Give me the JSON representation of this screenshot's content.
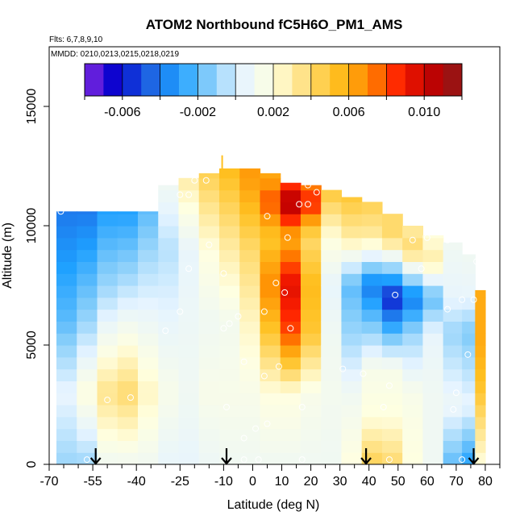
{
  "chart_data": {
    "type": "heatmap",
    "title": "ATOM2 Northbound fC5H6O_PM1_AMS",
    "flights_label": "Flts: 6,7,8,9,10",
    "dates_label": "MMDD: 0210,0213,0215,0218,0219",
    "xlabel": "Latitude (deg N)",
    "ylabel": "Altitude (m)",
    "xlim": [
      -70,
      85
    ],
    "ylim": [
      0,
      17500
    ],
    "x_ticks": [
      -70,
      -55,
      -40,
      -25,
      -10,
      0,
      10,
      20,
      30,
      40,
      50,
      60,
      70,
      80
    ],
    "x_tick_labels": [
      "-70",
      "-55",
      "-40",
      "-25",
      "-10",
      "0",
      "10",
      "20",
      "30",
      "40",
      "50",
      "60",
      "70",
      "80"
    ],
    "x_minor_ticks": [
      -65,
      -60,
      -50,
      -45,
      -35,
      -30,
      -20,
      -15,
      -5,
      5,
      15,
      25,
      35,
      45,
      55,
      65,
      75,
      85
    ],
    "y_ticks": [
      0,
      5000,
      10000,
      15000
    ],
    "y_tick_labels": [
      "0",
      "5000",
      "10000",
      "15000"
    ],
    "colorbar": {
      "range": [
        -0.008,
        0.012
      ],
      "ticks": [
        -0.006,
        -0.002,
        0.002,
        0.006,
        0.01
      ],
      "tick_labels": [
        "-0.006",
        "-0.002",
        "0.002",
        "0.006",
        "0.010"
      ],
      "colors": [
        "#8a2be2",
        "#0000cd",
        "#1e5fe0",
        "#1ea0ff",
        "#87cefa",
        "#e6f4ff",
        "#ffffe0",
        "#ffe080",
        "#ffc020",
        "#ff8c00",
        "#ff2000",
        "#c00000",
        "#8b1a1a"
      ]
    },
    "flight_arrows_lat": [
      -54,
      -9,
      39,
      76
    ],
    "columns": [
      {
        "lat": -64,
        "top": 10600,
        "profile": [
          [
            0,
            -0.001
          ],
          [
            3000,
            0.0005
          ],
          [
            6000,
            -0.002
          ],
          [
            10600,
            -0.004
          ]
        ]
      },
      {
        "lat": -57,
        "top": 10600,
        "profile": [
          [
            0,
            -0.001
          ],
          [
            3000,
            0.002
          ],
          [
            6000,
            -0.001
          ],
          [
            10600,
            -0.004
          ]
        ]
      },
      {
        "lat": -50,
        "top": 10600,
        "profile": [
          [
            0,
            0.001
          ],
          [
            3000,
            0.0035
          ],
          [
            5500,
            0.001
          ],
          [
            7500,
            -0.001
          ],
          [
            10600,
            -0.003
          ]
        ]
      },
      {
        "lat": -43,
        "top": 10600,
        "profile": [
          [
            0,
            0.001
          ],
          [
            3000,
            0.004
          ],
          [
            5500,
            0.0015
          ],
          [
            8000,
            -0.001
          ],
          [
            10600,
            -0.003
          ]
        ]
      },
      {
        "lat": -36,
        "top": 10600,
        "profile": [
          [
            0,
            0.001
          ],
          [
            3000,
            0.0025
          ],
          [
            6000,
            0.0008
          ],
          [
            9000,
            -0.001
          ],
          [
            10600,
            -0.002
          ]
        ]
      },
      {
        "lat": -29,
        "top": 11700,
        "profile": [
          [
            0,
            0.0005
          ],
          [
            3000,
            0.0015
          ],
          [
            6000,
            0.0005
          ],
          [
            9000,
            -0.0005
          ],
          [
            11700,
            0.001
          ]
        ]
      },
      {
        "lat": -22,
        "top": 12000,
        "profile": [
          [
            0,
            0.0005
          ],
          [
            3000,
            0.001
          ],
          [
            6000,
            0.0008
          ],
          [
            9000,
            0.0005
          ],
          [
            12000,
            0.003
          ]
        ]
      },
      {
        "lat": -15,
        "top": 12200,
        "profile": [
          [
            0,
            0.0008
          ],
          [
            3000,
            0.0015
          ],
          [
            6000,
            0.001
          ],
          [
            9000,
            0.002
          ],
          [
            12200,
            0.0045
          ]
        ]
      },
      {
        "lat": -8,
        "top": 12400,
        "profile": [
          [
            0,
            0.001
          ],
          [
            3000,
            0.0015
          ],
          [
            6000,
            0.0012
          ],
          [
            9000,
            0.003
          ],
          [
            12400,
            0.0055
          ]
        ]
      },
      {
        "lat": -1,
        "top": 12400,
        "profile": [
          [
            0,
            0.001
          ],
          [
            3000,
            0.0015
          ],
          [
            6000,
            0.0025
          ],
          [
            9000,
            0.004
          ],
          [
            12000,
            0.0065
          ]
        ]
      },
      {
        "lat": 6,
        "top": 12200,
        "profile": [
          [
            0,
            0.001
          ],
          [
            3000,
            0.002
          ],
          [
            5500,
            0.005
          ],
          [
            7500,
            0.007
          ],
          [
            9500,
            0.005
          ],
          [
            11000,
            0.008
          ],
          [
            12200,
            0.006
          ]
        ]
      },
      {
        "lat": 13,
        "top": 11800,
        "profile": [
          [
            0,
            0.001
          ],
          [
            3000,
            0.002
          ],
          [
            5500,
            0.008
          ],
          [
            7500,
            0.0095
          ],
          [
            9500,
            0.006
          ],
          [
            11000,
            0.011
          ],
          [
            11800,
            0.008
          ]
        ]
      },
      {
        "lat": 20,
        "top": 11700,
        "profile": [
          [
            0,
            0.001
          ],
          [
            3000,
            0.0015
          ],
          [
            5500,
            0.005
          ],
          [
            7500,
            0.0055
          ],
          [
            9500,
            0.004
          ],
          [
            11000,
            0.009
          ],
          [
            11700,
            0.007
          ]
        ]
      },
      {
        "lat": 27,
        "top": 11500,
        "profile": [
          [
            0,
            0.001
          ],
          [
            3000,
            0.0012
          ],
          [
            5500,
            0.001
          ],
          [
            7500,
            0.0005
          ],
          [
            9500,
            0.002
          ],
          [
            11500,
            0.005
          ]
        ]
      },
      {
        "lat": 34,
        "top": 11200,
        "profile": [
          [
            0,
            0.002
          ],
          [
            3000,
            0.001
          ],
          [
            5500,
            -0.001
          ],
          [
            7500,
            -0.002
          ],
          [
            9500,
            0.003
          ],
          [
            11200,
            0.005
          ]
        ]
      },
      {
        "lat": 41,
        "top": 11000,
        "profile": [
          [
            0,
            0.0045
          ],
          [
            2000,
            0.002
          ],
          [
            4000,
            0.0015
          ],
          [
            5500,
            -0.001
          ],
          [
            7500,
            -0.004
          ],
          [
            9500,
            0.003
          ],
          [
            11000,
            0.0045
          ]
        ]
      },
      {
        "lat": 48,
        "top": 10500,
        "profile": [
          [
            0,
            0.004
          ],
          [
            2000,
            0.002
          ],
          [
            4000,
            0.0015
          ],
          [
            5500,
            -0.002
          ],
          [
            7000,
            -0.006
          ],
          [
            9500,
            0.004
          ],
          [
            10500,
            0.004
          ]
        ]
      },
      {
        "lat": 55,
        "top": 10000,
        "profile": [
          [
            0,
            0.002
          ],
          [
            3000,
            0.0015
          ],
          [
            5500,
            -0.001
          ],
          [
            7000,
            -0.004
          ],
          [
            9000,
            0.004
          ],
          [
            10000,
            0.003
          ]
        ]
      },
      {
        "lat": 62,
        "top": 9600,
        "profile": [
          [
            0,
            0.001
          ],
          [
            3000,
            0.001
          ],
          [
            5500,
            0.0005
          ],
          [
            7000,
            -0.002
          ],
          [
            8500,
            0.003
          ],
          [
            9600,
            0.002
          ]
        ]
      },
      {
        "lat": 69,
        "top": 9300,
        "profile": [
          [
            0,
            -0.002
          ],
          [
            2500,
            0.0008
          ],
          [
            5500,
            -0.001
          ],
          [
            7000,
            0.0005
          ],
          [
            9300,
            0.001
          ]
        ]
      },
      {
        "lat": 75,
        "top": 8800,
        "profile": [
          [
            0,
            -0.003
          ],
          [
            2500,
            0.0005
          ],
          [
            5500,
            -0.0015
          ],
          [
            7000,
            0.0005
          ],
          [
            8800,
            0.001
          ]
        ]
      },
      {
        "lat": 78,
        "top": 7300,
        "profile": [
          [
            0,
            0.002
          ],
          [
            3000,
            0.005
          ],
          [
            5000,
            0.006
          ],
          [
            7300,
            0.006
          ]
        ]
      }
    ],
    "observations": [
      [
        -66,
        10600
      ],
      [
        -57,
        200
      ],
      [
        -50,
        2700
      ],
      [
        -42,
        2800
      ],
      [
        -30,
        5600
      ],
      [
        -25,
        11300
      ],
      [
        -22,
        11300
      ],
      [
        -20,
        11900
      ],
      [
        -16,
        11900
      ],
      [
        -25,
        6400
      ],
      [
        -22,
        8200
      ],
      [
        -15,
        9200
      ],
      [
        -10,
        8000
      ],
      [
        -10,
        5700
      ],
      [
        -8,
        5900
      ],
      [
        -9,
        2400
      ],
      [
        -5,
        6200
      ],
      [
        -3,
        4300
      ],
      [
        -3,
        200
      ],
      [
        2,
        200
      ],
      [
        -3,
        1100
      ],
      [
        1,
        1500
      ],
      [
        4,
        3700
      ],
      [
        5,
        1700
      ],
      [
        4,
        6400
      ],
      [
        5,
        10400
      ],
      [
        8,
        7600
      ],
      [
        9,
        4100
      ],
      [
        11,
        7200
      ],
      [
        12,
        9500
      ],
      [
        13,
        5700
      ],
      [
        16,
        10900
      ],
      [
        17,
        2400
      ],
      [
        17,
        200
      ],
      [
        19,
        10900
      ],
      [
        19,
        11700
      ],
      [
        22,
        11400
      ],
      [
        31,
        4000
      ],
      [
        38,
        3800
      ],
      [
        40,
        11700
      ],
      [
        45,
        2400
      ],
      [
        47,
        3300
      ],
      [
        47,
        200
      ],
      [
        49,
        7100
      ],
      [
        55,
        9400
      ],
      [
        58,
        8200
      ],
      [
        60,
        9500
      ],
      [
        67,
        9400
      ],
      [
        67,
        6500
      ],
      [
        69,
        2300
      ],
      [
        70,
        3000
      ],
      [
        72,
        200
      ],
      [
        72,
        6900
      ],
      [
        74,
        4600
      ],
      [
        77,
        8500
      ],
      [
        76,
        6900
      ]
    ]
  }
}
